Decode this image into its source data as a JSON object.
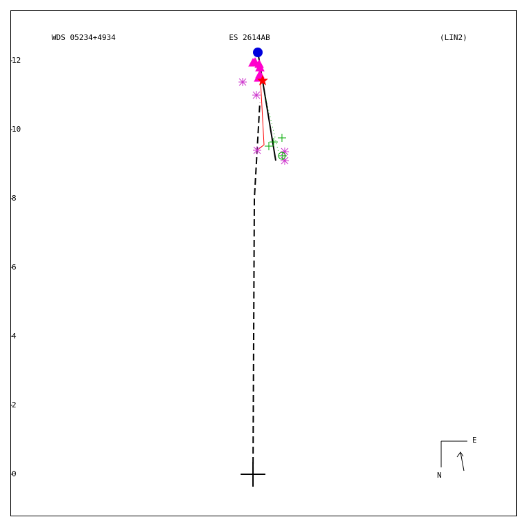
{
  "chart_data": {
    "type": "scatter",
    "title": "ES 2614AB",
    "annotations": [
      "WDS 05234+4934",
      "(LIN2)"
    ],
    "compass": {
      "east": "E",
      "north": "N"
    },
    "xlim": [
      -7.04,
      7.66
    ],
    "ylim": [
      -1.22,
      13.46
    ],
    "yticks": [
      0,
      2,
      4,
      6,
      8,
      10,
      12
    ],
    "series": [
      {
        "style": "dashed",
        "color": "#000000",
        "x": [
          0,
          0.04,
          0.12,
          0.2
        ],
        "values": [
          0,
          8.0,
          9.4,
          10.8
        ]
      },
      {
        "style": "solid",
        "color": "#000000",
        "x": [
          0.14,
          0.66
        ],
        "values": [
          12.26,
          9.1
        ]
      },
      {
        "style": "thin",
        "color": "#ff0000",
        "x": [
          0.22,
          0.32,
          0.12
        ],
        "values": [
          11.4,
          9.56,
          9.4
        ]
      },
      {
        "style": "dotted",
        "color": "#00aa00",
        "x": [
          0.36,
          0.76
        ],
        "values": [
          10.96,
          9.26
        ]
      },
      {
        "style": "cross",
        "color": "#000000",
        "x": [
          0
        ],
        "values": [
          0
        ]
      },
      {
        "style": "triangle",
        "color": "#ff00cc",
        "x": [
          0.0,
          0.06,
          0.18,
          0.2,
          0.2,
          0.16
        ],
        "values": [
          11.94,
          11.96,
          11.9,
          11.8,
          11.6,
          11.5
        ]
      },
      {
        "style": "asterisk",
        "color": "#cc33cc",
        "x": [
          -0.3,
          0.1,
          0.12,
          0.92,
          0.92
        ],
        "values": [
          11.38,
          11.0,
          9.4,
          9.36,
          9.1
        ]
      },
      {
        "style": "plus",
        "color": "#00aa00",
        "x": [
          0.84,
          0.46,
          0.6,
          0.86
        ],
        "values": [
          9.76,
          9.52,
          9.64,
          9.24
        ]
      },
      {
        "style": "circle",
        "color": "#00aa00",
        "x": [
          0.84
        ],
        "values": [
          9.24
        ]
      },
      {
        "style": "star",
        "color": "#ff0000",
        "x": [
          0.28
        ],
        "values": [
          11.42
        ]
      },
      {
        "style": "dot",
        "color": "#0000dd",
        "x": [
          0.14
        ],
        "values": [
          12.24
        ]
      }
    ]
  }
}
